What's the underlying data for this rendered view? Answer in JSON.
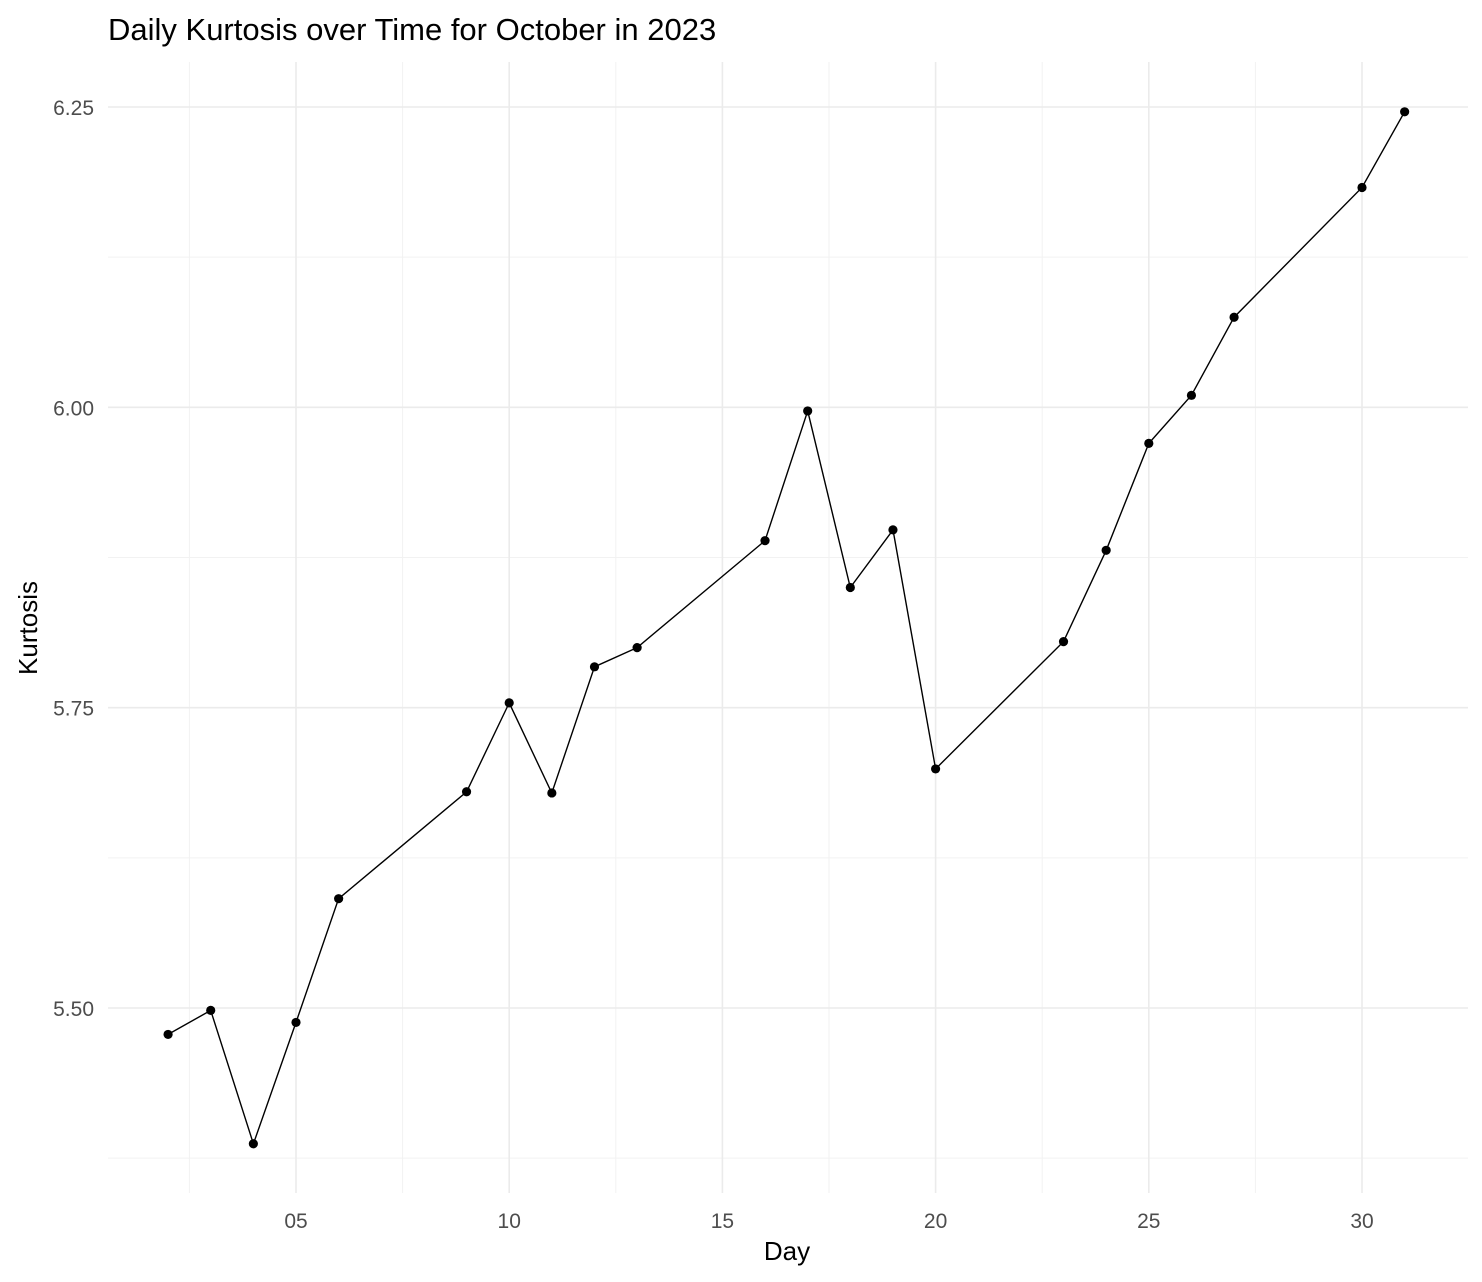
{
  "chart_data": {
    "type": "line",
    "title": "Daily Kurtosis over Time for October in 2023",
    "xlabel": "Day",
    "ylabel": "Kurtosis",
    "xlim": [
      0.5,
      32.3
    ],
    "ylim": [
      5.36,
      6.29
    ],
    "x_ticks": [
      5,
      10,
      15,
      20,
      25,
      30
    ],
    "x_tick_labels": [
      "05",
      "10",
      "15",
      "20",
      "25",
      "30"
    ],
    "y_ticks": [
      5.5,
      5.75,
      6.0,
      6.25
    ],
    "y_tick_labels": [
      "5.50",
      "5.75",
      "6.00",
      "6.25"
    ],
    "grid": true,
    "legend": "none",
    "series": [
      {
        "color": "#000000",
        "x": [
          2,
          3,
          4,
          5,
          6,
          9,
          10,
          11,
          12,
          13,
          16,
          17,
          18,
          19,
          20,
          23,
          24,
          25,
          26,
          27,
          30,
          31
        ],
        "y": [
          5.478,
          5.498,
          5.387,
          5.488,
          5.591,
          5.68,
          5.754,
          5.679,
          5.784,
          5.8,
          5.889,
          5.997,
          5.85,
          5.898,
          5.699,
          5.805,
          5.881,
          5.97,
          6.01,
          6.075,
          6.183,
          6.246
        ]
      }
    ]
  }
}
